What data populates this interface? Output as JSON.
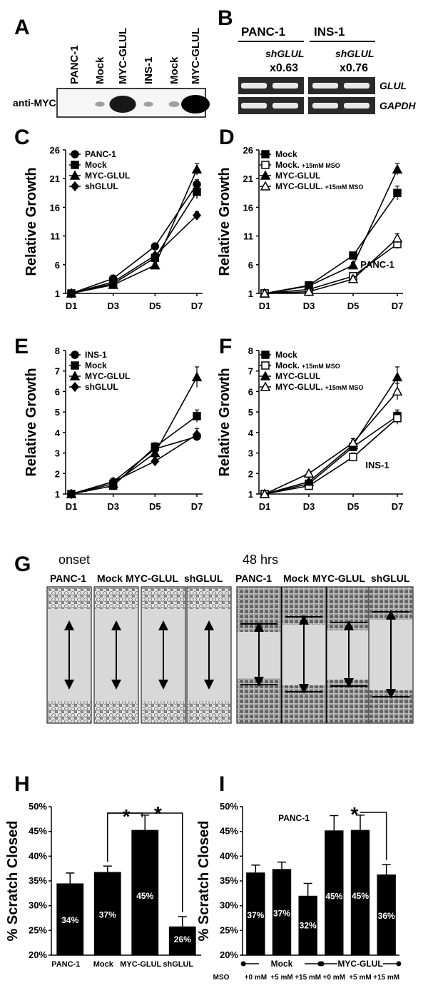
{
  "panel_labels": {
    "A": "A",
    "B": "B",
    "C": "C",
    "D": "D",
    "E": "E",
    "F": "F",
    "G": "G",
    "H": "H",
    "I": "I"
  },
  "blot_A": {
    "lanes": [
      "PANC-1",
      "Mock",
      "MYC-GLUL",
      "INS-1",
      "Mock",
      "MYC-GLUL"
    ],
    "antibody": "anti-MYC",
    "band_intensity": [
      0,
      0.05,
      0.9,
      0.05,
      0.1,
      1.0
    ]
  },
  "gel_B": {
    "groups": [
      {
        "name": "PANC-1",
        "treatment": "shGLUL",
        "ratio": "x0.63"
      },
      {
        "name": "INS-1",
        "treatment": "shGLUL",
        "ratio": "x0.76"
      }
    ],
    "genes": [
      "GLUL",
      "GAPDH"
    ]
  },
  "panel_G": {
    "onset_label": "onset",
    "h48_label": "48 hrs",
    "onset_lanes": [
      "PANC-1",
      "Mock",
      "MYC-GLUL",
      "shGLUL"
    ],
    "h48_lanes": [
      "PANC-1",
      "Mock",
      "MYC-GLUL",
      "shGLUL"
    ]
  },
  "chart_data": [
    {
      "id": "C",
      "type": "line",
      "ylabel": "Relative Growth",
      "categories": [
        "D1",
        "D3",
        "D5",
        "D7"
      ],
      "ylim": [
        1,
        26
      ],
      "yticks": [
        1,
        6,
        11,
        16,
        21,
        26
      ],
      "series": [
        {
          "name": "PANC-1",
          "marker": "circle",
          "values": [
            1,
            3.6,
            9.2,
            20
          ],
          "err": [
            0.2,
            0.3,
            0.4,
            0.8
          ]
        },
        {
          "name": "Mock",
          "marker": "square",
          "values": [
            1,
            2.7,
            7.2,
            18.7
          ],
          "err": [
            0.2,
            0.3,
            0.5,
            1.2
          ]
        },
        {
          "name": "MYC-GLUL",
          "marker": "triangle",
          "values": [
            1,
            2.5,
            5.9,
            22.6
          ],
          "err": [
            0.2,
            0.3,
            0.4,
            1.0
          ]
        },
        {
          "name": "shGLUL",
          "marker": "diamond",
          "values": [
            1,
            3.0,
            7.6,
            14.6
          ],
          "err": [
            0.2,
            0.3,
            0.4,
            0.6
          ]
        }
      ]
    },
    {
      "id": "D",
      "type": "line",
      "ylabel": "Relative Growth",
      "annotation": "PANC-1",
      "categories": [
        "D1",
        "D3",
        "D5",
        "D7"
      ],
      "ylim": [
        1,
        26
      ],
      "yticks": [
        1,
        6,
        11,
        16,
        21,
        26
      ],
      "series": [
        {
          "name": "Mock",
          "marker": "square",
          "values": [
            1,
            2.4,
            7.6,
            18.5
          ],
          "err": [
            0.2,
            0.3,
            0.4,
            1.2
          ]
        },
        {
          "name": "Mock.",
          "suffix": "+15mM MSO",
          "marker": "square-open",
          "values": [
            1,
            1.7,
            4.0,
            9.6
          ],
          "err": [
            0.2,
            0.3,
            0.5,
            0.8
          ]
        },
        {
          "name": "MYC-GLUL",
          "marker": "triangle",
          "values": [
            1,
            2.3,
            5.9,
            22.6
          ],
          "err": [
            0.2,
            0.3,
            0.5,
            1.0
          ]
        },
        {
          "name": "MYC-GLUL.",
          "suffix": "+15mM MSO",
          "marker": "triangle-open",
          "values": [
            1,
            1.3,
            3.5,
            10.6
          ],
          "err": [
            0.2,
            0.3,
            0.5,
            0.8
          ]
        }
      ]
    },
    {
      "id": "E",
      "type": "line",
      "ylabel": "Relative Growth",
      "categories": [
        "D1",
        "D3",
        "D5",
        "D7"
      ],
      "ylim": [
        1,
        8
      ],
      "yticks": [
        1,
        2,
        3,
        4,
        5,
        6,
        7,
        8
      ],
      "series": [
        {
          "name": "INS-1",
          "marker": "circle",
          "values": [
            1,
            1.6,
            3.2,
            3.8
          ],
          "err": [
            0.05,
            0.1,
            0.2,
            0.2
          ]
        },
        {
          "name": "Mock",
          "marker": "square",
          "values": [
            1,
            1.4,
            3.3,
            4.8
          ],
          "err": [
            0.05,
            0.1,
            0.2,
            0.3
          ]
        },
        {
          "name": "MYC-GLUL",
          "marker": "triangle",
          "values": [
            1,
            1.5,
            3.0,
            6.7
          ],
          "err": [
            0.05,
            0.1,
            0.2,
            0.5
          ]
        },
        {
          "name": "shGLUL",
          "marker": "diamond",
          "values": [
            1,
            1.6,
            2.6,
            3.9
          ],
          "err": [
            0.05,
            0.1,
            0.2,
            0.3
          ]
        }
      ]
    },
    {
      "id": "F",
      "type": "line",
      "ylabel": "Relative Growth",
      "annotation": "INS-1",
      "categories": [
        "D1",
        "D3",
        "D5",
        "D7"
      ],
      "ylim": [
        1,
        8
      ],
      "yticks": [
        1,
        2,
        3,
        4,
        5,
        6,
        7,
        8
      ],
      "series": [
        {
          "name": "Mock",
          "marker": "square",
          "values": [
            1,
            1.5,
            3.3,
            4.8
          ],
          "err": [
            0.05,
            0.1,
            0.2,
            0.3
          ]
        },
        {
          "name": "Mock.",
          "suffix": "+15mM MSO",
          "marker": "square-open",
          "values": [
            1,
            1.4,
            2.8,
            4.7
          ],
          "err": [
            0.05,
            0.1,
            0.2,
            0.3
          ]
        },
        {
          "name": "MYC-GLUL",
          "marker": "triangle",
          "values": [
            1,
            1.6,
            3.4,
            6.7
          ],
          "err": [
            0.05,
            0.1,
            0.2,
            0.5
          ]
        },
        {
          "name": "MYC-GLUL.",
          "suffix": "+15mM MSO",
          "marker": "triangle-open",
          "values": [
            1,
            2.0,
            3.5,
            6.0
          ],
          "err": [
            0.05,
            0.1,
            0.2,
            0.4
          ]
        }
      ]
    },
    {
      "id": "H",
      "type": "bar",
      "ylabel": "% Scratch Closed",
      "categories": [
        "PANC-1",
        "Mock",
        "MYC-GLUL",
        "shGLUL"
      ],
      "values": [
        34.5,
        36.8,
        45.3,
        25.8
      ],
      "err": [
        2.1,
        1.2,
        3.0,
        2.0
      ],
      "labels": [
        "34%",
        "37%",
        "45%",
        "26%"
      ],
      "ylim": [
        20,
        50
      ],
      "yticks": [
        "20%",
        "25%",
        "30%",
        "35%",
        "40%",
        "45%",
        "50%"
      ],
      "significance": [
        "*",
        "*"
      ]
    },
    {
      "id": "I",
      "type": "bar",
      "ylabel": "% Scratch Closed",
      "annotation": "PANC-1",
      "categories": [
        "+0 mM",
        "+5 mM",
        "+15 mM",
        "+0 mM",
        "+5 mM",
        "+15 mM"
      ],
      "values": [
        36.7,
        37.4,
        32.0,
        45.2,
        45.3,
        36.3
      ],
      "err": [
        1.5,
        1.4,
        2.5,
        3.0,
        3.0,
        2.0
      ],
      "labels": [
        "37%",
        "37%",
        "32%",
        "45%",
        "45%",
        "36%"
      ],
      "ylim": [
        20,
        50
      ],
      "yticks": [
        "20%",
        "25%",
        "30%",
        "35%",
        "40%",
        "45%",
        "50%"
      ],
      "groups": [
        "Mock",
        "MYC-GLUL"
      ],
      "mso_label": "MSO",
      "significance": [
        "*"
      ]
    }
  ]
}
